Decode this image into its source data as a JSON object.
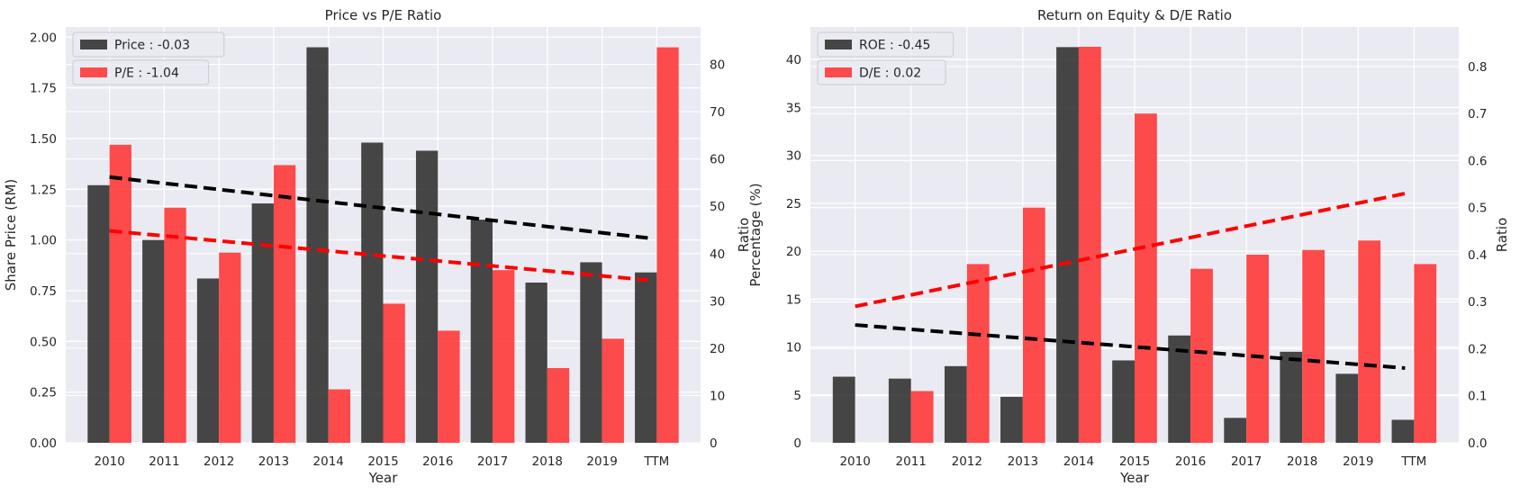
{
  "chart_data": [
    {
      "type": "bar",
      "title": "Price vs P/E Ratio",
      "xlabel": "Year",
      "ylabel": "Share Price (RM)",
      "y2label": "Ratio",
      "categories": [
        "2010",
        "2011",
        "2012",
        "2013",
        "2014",
        "2015",
        "2016",
        "2017",
        "2018",
        "2019",
        "TTM"
      ],
      "ylim": [
        0,
        2.05
      ],
      "y2lim": [
        0,
        87.9
      ],
      "yticks": [
        "0.00",
        "0.25",
        "0.50",
        "0.75",
        "1.00",
        "1.25",
        "1.50",
        "1.75",
        "2.00"
      ],
      "y2ticks": [
        "0",
        "10",
        "20",
        "30",
        "40",
        "50",
        "60",
        "70",
        "80"
      ],
      "series": [
        {
          "name": "Price : -0.03",
          "axis": "left",
          "color": "#333333",
          "values": [
            1.27,
            1.0,
            0.81,
            1.18,
            1.95,
            1.48,
            1.44,
            1.1,
            0.79,
            0.89,
            0.84
          ],
          "trend": [
            1.31,
            1.01
          ]
        },
        {
          "name": "P/E : -1.04",
          "axis": "right",
          "color": "#ff3333",
          "values": [
            63.0,
            49.7,
            40.2,
            58.7,
            11.3,
            29.4,
            23.7,
            36.5,
            15.8,
            22.0,
            83.6
          ],
          "trend": [
            44.8,
            34.4
          ]
        }
      ],
      "grid": true,
      "legend": "top-left"
    },
    {
      "type": "bar",
      "title": "Return on Equity & D/E Ratio",
      "xlabel": "Year",
      "ylabel": "Percentage (%)",
      "y2label": "Ratio",
      "categories": [
        "2010",
        "2011",
        "2012",
        "2013",
        "2014",
        "2015",
        "2016",
        "2017",
        "2018",
        "2019",
        "TTM"
      ],
      "ylim": [
        0,
        43.4
      ],
      "y2lim": [
        0,
        0.884
      ],
      "yticks": [
        "0",
        "5",
        "10",
        "15",
        "20",
        "25",
        "30",
        "35",
        "40"
      ],
      "y2ticks": [
        "0.0",
        "0.1",
        "0.2",
        "0.3",
        "0.4",
        "0.5",
        "0.6",
        "0.7",
        "0.8"
      ],
      "series": [
        {
          "name": "ROE : -0.45",
          "axis": "left",
          "color": "#333333",
          "values": [
            6.9,
            6.7,
            8.0,
            4.8,
            41.3,
            8.6,
            11.2,
            2.6,
            9.5,
            7.2,
            2.4
          ],
          "trend": [
            12.3,
            7.8
          ]
        },
        {
          "name": "D/E : 0.02",
          "axis": "right",
          "color": "#ff3333",
          "values": [
            0.0,
            0.11,
            0.38,
            0.5,
            0.842,
            0.7,
            0.37,
            0.4,
            0.41,
            0.43,
            0.38
          ],
          "trend": [
            0.29,
            0.53
          ]
        }
      ],
      "grid": true,
      "legend": "top-left"
    }
  ]
}
